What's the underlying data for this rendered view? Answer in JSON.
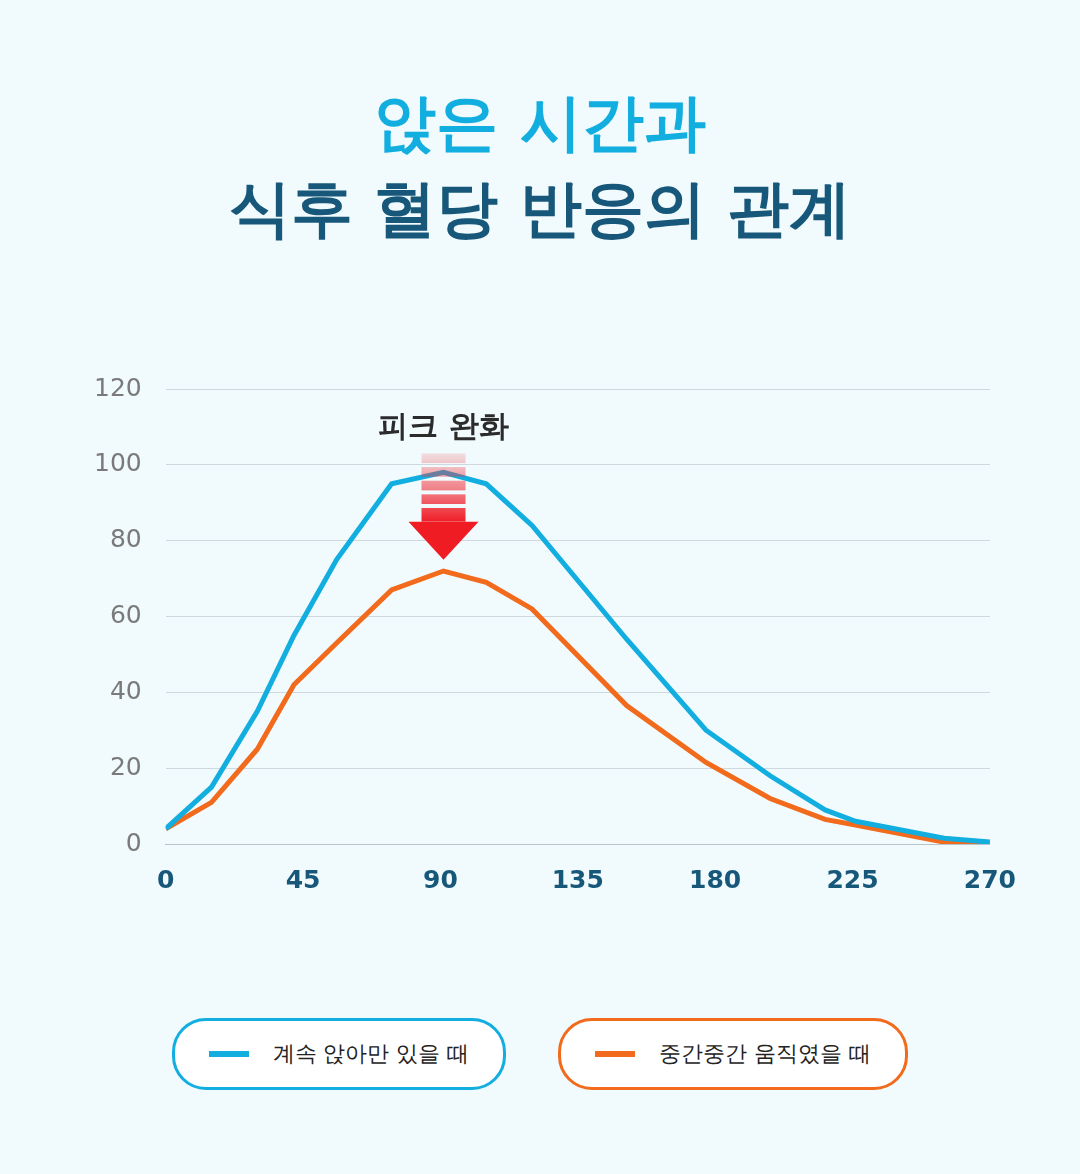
{
  "chart_data": {
    "type": "line",
    "title": [
      "앉은 시간과",
      "식후 혈당 반응의 관계"
    ],
    "x": [
      0,
      15,
      30,
      42,
      56,
      74,
      91,
      105,
      120,
      151,
      177,
      198,
      216,
      226,
      255,
      270
    ],
    "series": [
      {
        "name": "계속 앉아만 있을 때",
        "color": "#12aee0",
        "values": [
          4,
          15,
          35,
          55,
          75,
          95,
          98,
          95,
          84,
          54,
          30,
          18,
          9,
          6,
          1.5,
          0.5
        ]
      },
      {
        "name": "중간중간 움직였을 때",
        "color": "#f26a1b",
        "values": [
          4,
          11,
          25,
          42,
          53,
          67,
          72,
          69,
          62,
          36.5,
          21.5,
          12,
          6.5,
          5,
          0.5,
          0
        ]
      }
    ],
    "xlim": [
      0,
      270
    ],
    "xticks": [
      0,
      45,
      90,
      135,
      180,
      225,
      270
    ],
    "ylim": [
      0,
      120
    ],
    "yticks": [
      0,
      20,
      40,
      60,
      80,
      100,
      120
    ],
    "grid": true,
    "legend": "bottom",
    "annotation": {
      "text": "피크 완화",
      "x": 91,
      "y_from": 103,
      "y_to": 75
    }
  }
}
